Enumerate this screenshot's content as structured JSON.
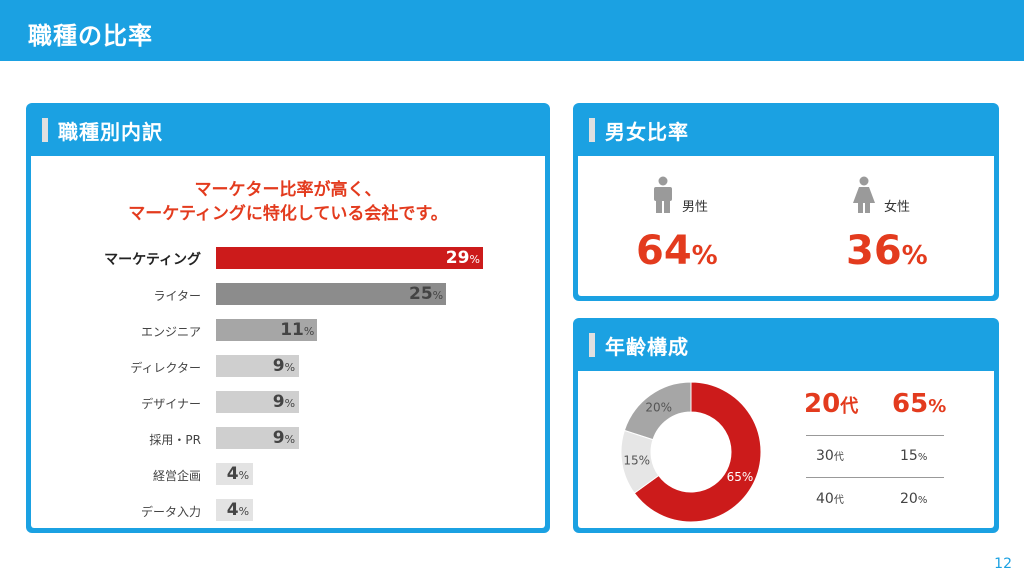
{
  "header": {
    "title": "職種の比率"
  },
  "job_panel": {
    "title": "職種別内訳",
    "headline_line1": "マーケター比率が高く、",
    "headline_line2": "マーケティングに特化している会社です。",
    "unit": "%",
    "rows": [
      {
        "label": "マーケティング",
        "value": 29,
        "color": "#cc1b1b"
      },
      {
        "label": "ライター",
        "value": 25,
        "color": "#8c8c8c"
      },
      {
        "label": "エンジニア",
        "value": 11,
        "color": "#a6a6a6"
      },
      {
        "label": "ディレクター",
        "value": 9,
        "color": "#cfcfcf"
      },
      {
        "label": "デザイナー",
        "value": 9,
        "color": "#cfcfcf"
      },
      {
        "label": "採用・PR",
        "value": 9,
        "color": "#cfcfcf"
      },
      {
        "label": "経営企画",
        "value": 4,
        "color": "#e3e3e3"
      },
      {
        "label": "データ入力",
        "value": 4,
        "color": "#e3e3e3"
      }
    ]
  },
  "gender_panel": {
    "title": "男女比率",
    "male": {
      "label": "男性",
      "value": "64",
      "unit": "%",
      "icon": "male-person-icon"
    },
    "female": {
      "label": "女性",
      "value": "36",
      "unit": "%",
      "icon": "female-person-icon"
    }
  },
  "age_panel": {
    "title": "年齢構成",
    "chart_data": {
      "type": "pie",
      "categories": [
        "20代",
        "30代",
        "40代"
      ],
      "values": [
        65,
        15,
        20
      ],
      "slice_labels": [
        "65%",
        "15%",
        "20%"
      ],
      "colors": [
        "#cc1b1b",
        "#e6e6e6",
        "#a6a6a6"
      ]
    },
    "highlight": {
      "age": "20",
      "age_unit": "代",
      "value": "65",
      "unit": "%"
    },
    "rows": [
      {
        "age": "30",
        "age_unit": "代",
        "value": "15",
        "unit": "%"
      },
      {
        "age": "40",
        "age_unit": "代",
        "value": "20",
        "unit": "%"
      }
    ]
  },
  "page_number": "12"
}
